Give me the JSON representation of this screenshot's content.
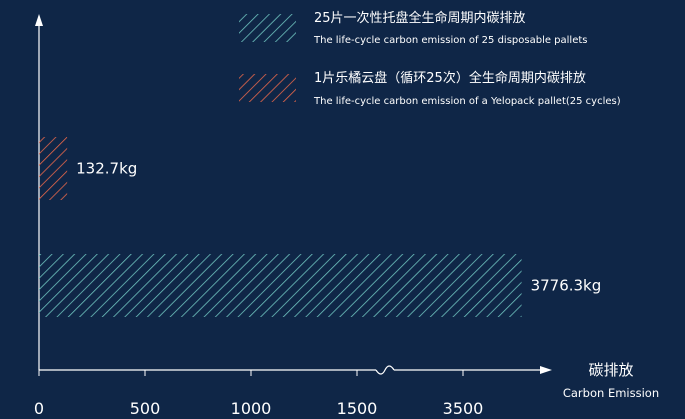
{
  "chart_data": {
    "type": "bar",
    "orientation": "horizontal",
    "series": [
      {
        "name": "25片一次性托盘全生命周期内碳排放",
        "name_en": "The life-cycle carbon emission of 25 disposable pallets",
        "value": 3776.3,
        "label": "3776.3kg",
        "color": "#6fc4c0"
      },
      {
        "name": "1片乐橘云盘（循环25次）全生命周期内碳排放",
        "name_en": "The life-cycle carbon emission of a Yelopack pallet(25 cycles)",
        "value": 132.7,
        "label": "132.7kg",
        "color": "#e8674a"
      }
    ],
    "x_ticks": [
      "0",
      "500",
      "1000",
      "1500",
      "3500"
    ],
    "axis_break": "between 1500 and 3500",
    "xlabel": "碳排放",
    "xlabel_en": "Carbon Emission",
    "legend_position": "top-right",
    "grid": false
  }
}
